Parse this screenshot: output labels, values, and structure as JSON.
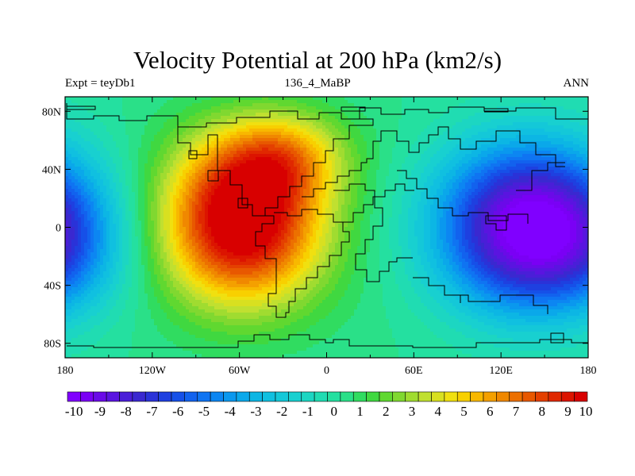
{
  "title": "Velocity Potential at 200 hPa (km2/s)",
  "left_string": "Expt = teyDb1",
  "center_string": "136_4_MaBP",
  "right_string": "ANN",
  "y_ticks": [
    "80N",
    "40N",
    "0",
    "40S",
    "80S"
  ],
  "x_ticks": [
    "180",
    "120W",
    "60W",
    "0",
    "60E",
    "120E",
    "180"
  ],
  "colorbar_labels": [
    "-10",
    "-9",
    "-8",
    "-7",
    "-6",
    "-5",
    "-4",
    "-3",
    "-2",
    "-1",
    "0",
    "1",
    "2",
    "3",
    "4",
    "5",
    "6",
    "7",
    "8",
    "9",
    "10"
  ],
  "chart_data": {
    "type": "heatmap",
    "title": "Velocity Potential at 200 hPa (km2/s)",
    "units": "km2/s",
    "variable": "Velocity potential",
    "level": "200 hPa",
    "season": "ANN",
    "experiment": "teyDb1",
    "case": "136_4_MaBP",
    "x_range": [
      -180,
      180
    ],
    "y_range": [
      -90,
      90
    ],
    "contour_levels": [
      -10,
      -9.5,
      -9,
      -8.5,
      -8,
      -7.5,
      -7,
      -6.5,
      -6,
      -5.5,
      -5,
      -4.5,
      -4,
      -3.5,
      -3,
      -2.5,
      -2,
      -1.5,
      -1,
      -0.5,
      0,
      0.5,
      1,
      1.5,
      2,
      2.5,
      3,
      3.5,
      4,
      4.5,
      5,
      5.5,
      6,
      6.5,
      7,
      7.5,
      8,
      8.5,
      9,
      9.5,
      10
    ],
    "colors": [
      "#8000ff",
      "#7a00f5",
      "#6a0ae8",
      "#5a14e0",
      "#4a1ed8",
      "#3a28d0",
      "#2a32d8",
      "#1e40e0",
      "#1650e8",
      "#1262ee",
      "#0f74f2",
      "#0c86f2",
      "#0a98ee",
      "#0aa8ea",
      "#0cb6e4",
      "#10c0e0",
      "#14c8d8",
      "#18d0d0",
      "#1cd6c2",
      "#20dcb2",
      "#24e0a0",
      "#2ae088",
      "#30dc60",
      "#40d840",
      "#60d830",
      "#80d830",
      "#a0dc30",
      "#c0e030",
      "#d8e020",
      "#f0e010",
      "#f8d000",
      "#f8b800",
      "#f4a000",
      "#f08800",
      "#ec7000",
      "#e85800",
      "#e44000",
      "#e02800",
      "#dc1400",
      "#d80000"
    ],
    "extrema": [
      {
        "name": "max",
        "lon": -60,
        "lat": 10,
        "value": 10
      },
      {
        "name": "min",
        "lon": 140,
        "lat": 5,
        "value": -10
      }
    ]
  }
}
